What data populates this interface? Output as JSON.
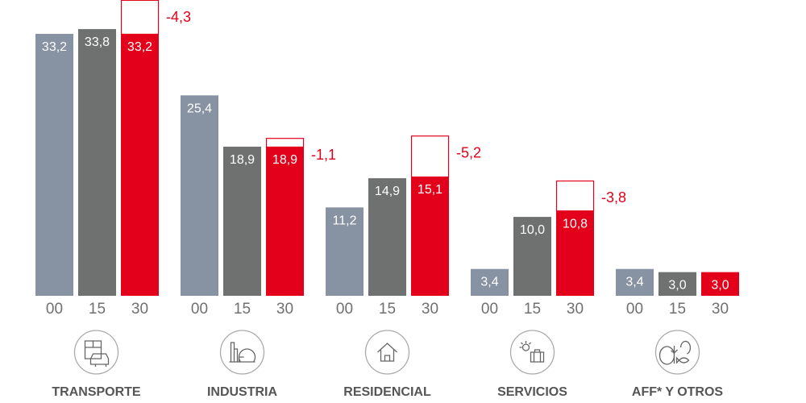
{
  "chart_data": {
    "type": "bar",
    "title": "",
    "xlabel": "",
    "ylabel": "",
    "ylim": [
      0,
      37.5
    ],
    "grid": false,
    "years": [
      "00",
      "15",
      "30"
    ],
    "categories": [
      "TRANSPORTE",
      "INDUSTRIA",
      "RESIDENCIAL",
      "SERVICIOS",
      "AFF* Y OTROS"
    ],
    "icons": [
      "bus-car-icon",
      "factory-icon",
      "house-icon",
      "sun-suitcase-icon",
      "tree-fish-icon"
    ],
    "series": [
      {
        "name": "00",
        "color": "#8792a2",
        "values": [
          33.2,
          25.4,
          11.2,
          3.4,
          3.4
        ],
        "labels": [
          "33,2",
          "25,4",
          "11,2",
          "3,4",
          "3,4"
        ]
      },
      {
        "name": "15",
        "color": "#6f7070",
        "values": [
          33.8,
          18.9,
          14.9,
          10.0,
          3.0
        ],
        "labels": [
          "33,8",
          "18,9",
          "14,9",
          "10,0",
          "3,0"
        ]
      },
      {
        "name": "30",
        "color": "#e2001a",
        "values": [
          33.2,
          18.9,
          15.1,
          10.8,
          3.0
        ],
        "labels": [
          "33,2",
          "18,9",
          "15,1",
          "10,8",
          "3,0"
        ]
      }
    ],
    "reductions": [
      {
        "value": -4.3,
        "label": "-4,3"
      },
      {
        "value": -1.1,
        "label": "-1,1"
      },
      {
        "value": -5.2,
        "label": "-5,2"
      },
      {
        "value": -3.8,
        "label": "-3,8"
      },
      {
        "value": null,
        "label": null
      }
    ]
  }
}
